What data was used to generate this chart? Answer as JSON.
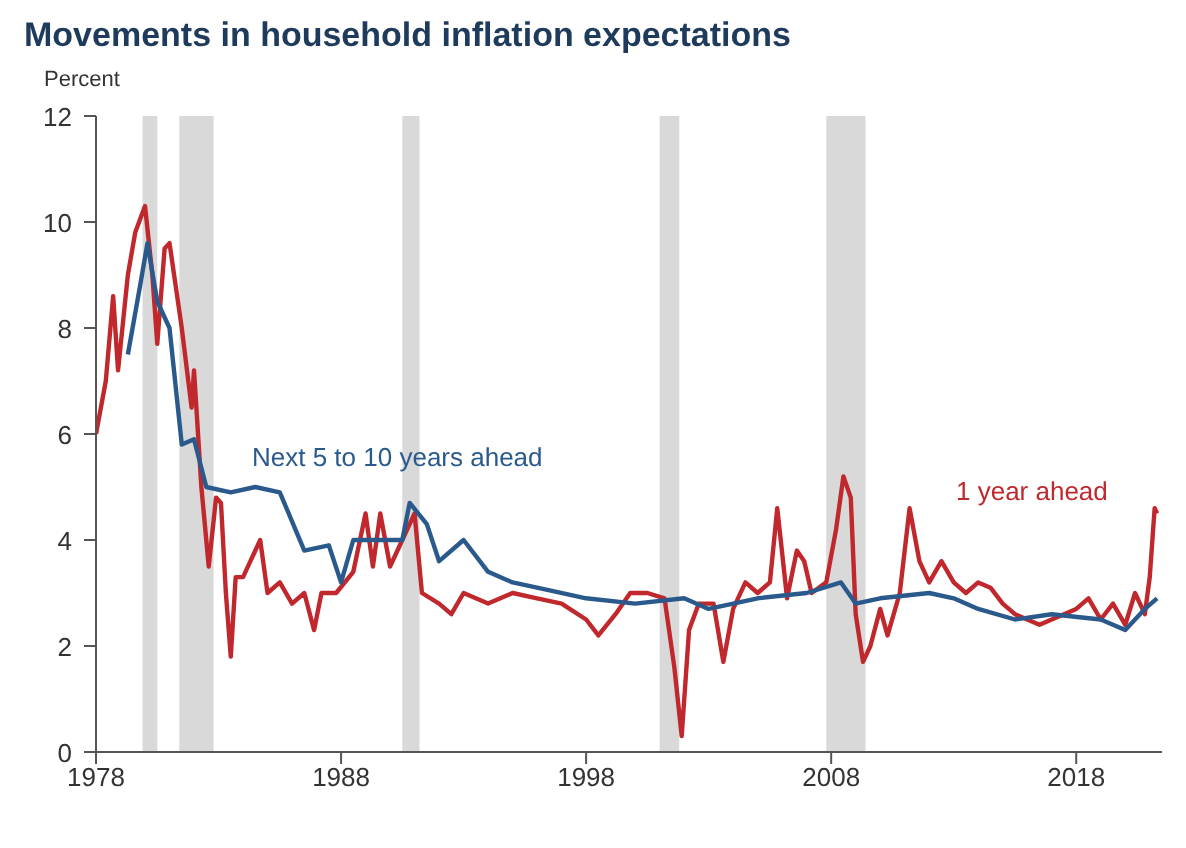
{
  "chart_data": {
    "type": "line",
    "title": "Movements in household inflation expectations",
    "ylabel": "Percent",
    "xlim": [
      1978,
      2021.5
    ],
    "xticks": [
      1978,
      1988,
      1998,
      2008,
      2018
    ],
    "ylim": [
      0,
      12
    ],
    "yticks": [
      0,
      2,
      4,
      6,
      8,
      10,
      12
    ],
    "marker": "none",
    "line_style": "solid",
    "bands": [
      {
        "axis": "x",
        "from": 1979.9,
        "to": 1980.5,
        "color": "#d9d9d9"
      },
      {
        "axis": "x",
        "from": 1981.4,
        "to": 1982.8,
        "color": "#d9d9d9"
      },
      {
        "axis": "x",
        "from": 1990.5,
        "to": 1991.2,
        "color": "#d9d9d9"
      },
      {
        "axis": "x",
        "from": 2001.0,
        "to": 2001.8,
        "color": "#d9d9d9"
      },
      {
        "axis": "x",
        "from": 2007.8,
        "to": 2009.4,
        "color": "#d9d9d9"
      }
    ],
    "series": [
      {
        "name": "1 year ahead",
        "color": "#c0282d",
        "x": [
          1978.0,
          1978.4,
          1978.7,
          1978.9,
          1979.3,
          1979.6,
          1980.0,
          1980.3,
          1980.5,
          1980.8,
          1981.0,
          1981.5,
          1981.9,
          1982.0,
          1982.3,
          1982.6,
          1982.9,
          1983.1,
          1983.3,
          1983.5,
          1983.7,
          1984.0,
          1984.7,
          1985.0,
          1985.5,
          1986.0,
          1986.5,
          1986.9,
          1987.2,
          1987.8,
          1988.5,
          1989.0,
          1989.3,
          1989.6,
          1990.0,
          1990.5,
          1990.8,
          1991.0,
          1991.3,
          1992.0,
          1992.5,
          1993.0,
          1994.0,
          1995.0,
          1996.0,
          1997.0,
          1998.0,
          1998.5,
          1999.2,
          1999.8,
          2000.5,
          2001.2,
          2001.6,
          2001.9,
          2002.2,
          2002.6,
          2003.2,
          2003.6,
          2004.0,
          2004.5,
          2005.0,
          2005.5,
          2005.8,
          2006.2,
          2006.6,
          2006.9,
          2007.2,
          2007.8,
          2008.2,
          2008.5,
          2008.8,
          2009.0,
          2009.3,
          2009.6,
          2010.0,
          2010.3,
          2010.8,
          2011.2,
          2011.6,
          2012.0,
          2012.5,
          2013.0,
          2013.5,
          2014.0,
          2014.5,
          2015.0,
          2015.5,
          2016.0,
          2016.5,
          2017.0,
          2017.5,
          2018.0,
          2018.5,
          2019.0,
          2019.5,
          2020.0,
          2020.4,
          2020.8,
          2021.0,
          2021.2,
          2021.3
        ],
        "values": [
          6.0,
          7.0,
          8.6,
          7.2,
          9.0,
          9.8,
          10.3,
          9.0,
          7.7,
          9.5,
          9.6,
          8.0,
          6.5,
          7.2,
          5.0,
          3.5,
          4.8,
          4.7,
          3.0,
          1.8,
          3.3,
          3.3,
          4.0,
          3.0,
          3.2,
          2.8,
          3.0,
          2.3,
          3.0,
          3.0,
          3.4,
          4.5,
          3.5,
          4.5,
          3.5,
          4.0,
          4.3,
          4.5,
          3.0,
          2.8,
          2.6,
          3.0,
          2.8,
          3.0,
          2.9,
          2.8,
          2.5,
          2.2,
          2.6,
          3.0,
          3.0,
          2.9,
          1.6,
          0.3,
          2.3,
          2.8,
          2.8,
          1.7,
          2.7,
          3.2,
          3.0,
          3.2,
          4.6,
          2.9,
          3.8,
          3.6,
          3.0,
          3.2,
          4.2,
          5.2,
          4.8,
          2.6,
          1.7,
          2.0,
          2.7,
          2.2,
          3.0,
          4.6,
          3.6,
          3.2,
          3.6,
          3.2,
          3.0,
          3.2,
          3.1,
          2.8,
          2.6,
          2.5,
          2.4,
          2.5,
          2.6,
          2.7,
          2.9,
          2.5,
          2.8,
          2.4,
          3.0,
          2.6,
          3.3,
          4.6,
          4.5
        ]
      },
      {
        "name": "Next 5 to 10 years ahead",
        "color": "#2a5a8c",
        "x": [
          1979.3,
          1979.8,
          1980.1,
          1980.5,
          1981.0,
          1981.5,
          1982.0,
          1982.5,
          1983.5,
          1984.5,
          1985.5,
          1986.5,
          1987.5,
          1988.0,
          1988.5,
          1989.5,
          1990.5,
          1990.8,
          1991.5,
          1992.0,
          1993.0,
          1994.0,
          1995.0,
          1996.0,
          1998.0,
          2000.0,
          2002.0,
          2003.0,
          2005.0,
          2007.0,
          2008.4,
          2009.0,
          2010.0,
          2012.0,
          2013.0,
          2014.0,
          2015.5,
          2017.0,
          2019.0,
          2020.0,
          2020.8,
          2021.3
        ],
        "values": [
          7.5,
          8.8,
          9.6,
          8.5,
          8.0,
          5.8,
          5.9,
          5.0,
          4.9,
          5.0,
          4.9,
          3.8,
          3.9,
          3.2,
          4.0,
          4.0,
          4.0,
          4.7,
          4.3,
          3.6,
          4.0,
          3.4,
          3.2,
          3.1,
          2.9,
          2.8,
          2.9,
          2.7,
          2.9,
          3.0,
          3.2,
          2.8,
          2.9,
          3.0,
          2.9,
          2.7,
          2.5,
          2.6,
          2.5,
          2.3,
          2.7,
          2.9
        ]
      }
    ]
  }
}
